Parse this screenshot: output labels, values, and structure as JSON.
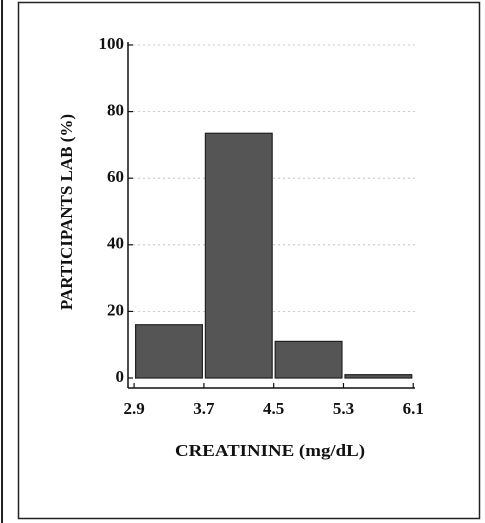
{
  "chart_data": {
    "type": "histogram",
    "xlabel": "CREATININE (mg/dL)",
    "ylabel": "PARTICIPANTS LAB (%)",
    "bins": [
      2.9,
      3.7,
      4.5,
      5.3,
      6.1
    ],
    "values": [
      16,
      73.5,
      11,
      1
    ],
    "color": "#555555",
    "xlim": [
      2.83,
      6.12
    ],
    "xticks": [
      2.9,
      3.7,
      4.5,
      5.3,
      6.1
    ],
    "ylim": [
      -3,
      100
    ],
    "yticks": [
      0,
      20,
      40,
      60,
      80,
      100
    ],
    "grid": true
  }
}
